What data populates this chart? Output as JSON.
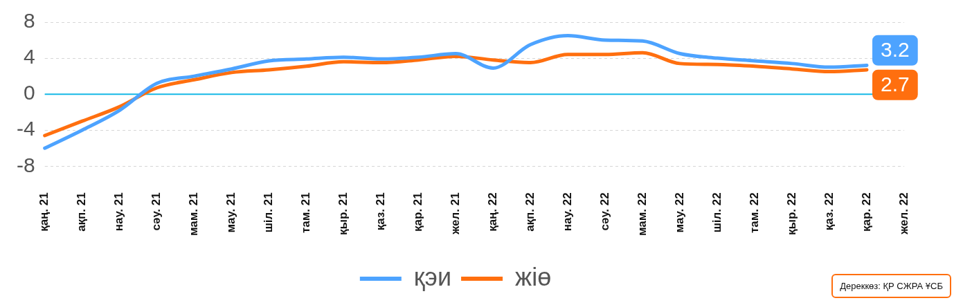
{
  "chart_data": {
    "type": "line",
    "categories": [
      "қаң. 21",
      "ақп. 21",
      "нау. 21",
      "сәу. 21",
      "мам. 21",
      "мау. 21",
      "шіл. 21",
      "там. 21",
      "қыр. 21",
      "қаз. 21",
      "қар. 21",
      "жел. 21",
      "қаң. 22",
      "ақп. 22",
      "нау. 22",
      "сәу. 22",
      "мам. 22",
      "мау. 22",
      "шіл. 22",
      "там. 22",
      "қыр. 22",
      "қаз. 22",
      "қар. 22",
      "жел. 22"
    ],
    "series": [
      {
        "name": "қэи",
        "color": "#4da3ff",
        "values": [
          -6.0,
          -4.0,
          -1.8,
          1.2,
          2.0,
          2.8,
          3.7,
          3.9,
          4.1,
          3.9,
          4.1,
          4.5,
          2.9,
          5.5,
          6.5,
          6.0,
          5.9,
          4.5,
          4.0,
          3.7,
          3.4,
          3.0,
          3.2,
          null
        ],
        "value_labels": [
          null,
          null,
          null,
          null,
          null,
          null,
          null,
          null,
          null,
          null,
          null,
          null,
          null,
          null,
          null,
          null,
          null,
          null,
          null,
          null,
          null,
          null,
          "3.2",
          null
        ]
      },
      {
        "name": "жіө",
        "color": "#ff6f0f",
        "values": [
          -4.6,
          -3.0,
          -1.4,
          0.7,
          1.6,
          2.4,
          2.7,
          3.1,
          3.6,
          3.5,
          3.8,
          4.2,
          3.8,
          3.5,
          4.4,
          4.4,
          4.6,
          3.4,
          3.3,
          3.1,
          2.8,
          2.5,
          2.7,
          null
        ],
        "value_labels": [
          null,
          null,
          null,
          null,
          null,
          null,
          null,
          null,
          null,
          null,
          null,
          null,
          null,
          null,
          null,
          null,
          null,
          null,
          null,
          null,
          null,
          null,
          "2.7",
          null
        ]
      }
    ],
    "ylim": [
      -8,
      8
    ],
    "yticks": [
      -8,
      -4,
      0,
      4,
      8
    ],
    "grid": "y",
    "legend": "bottom",
    "marker": "none",
    "line_style": "solid",
    "ref_lines": [
      {
        "axis": "y",
        "value": 0,
        "color": "#14b8e6"
      }
    ],
    "annotations": [
      "Дереккөз: ҚР СЖРА ҰСБ"
    ]
  }
}
